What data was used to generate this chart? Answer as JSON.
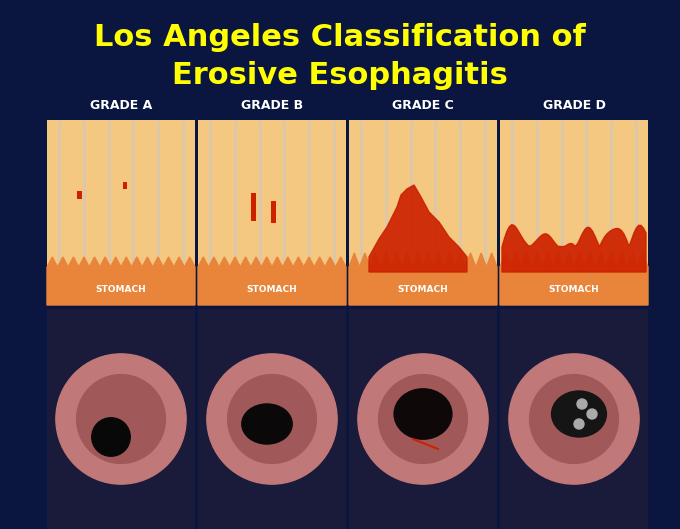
{
  "title_line1": "Los Angeles Classification of",
  "title_line2": "Erosive Esophagitis",
  "title_color": "#FFFF00",
  "title_fontsize": 22,
  "background_color": "#0a1540",
  "grades": [
    "GRADE A",
    "GRADE B",
    "GRADE C",
    "GRADE D"
  ],
  "grade_label_color": "#FFFFFF",
  "grade_label_fontsize": 9,
  "diagram_bg": "#F5C882",
  "stomach_color": "#E8853A",
  "stomach_label": "STOMACH",
  "stomach_label_color": "#FFFFFF",
  "erosion_color": "#CC2200",
  "stripe_color": "#C8C8C8",
  "stripe_alpha": 0.55,
  "photo_bg": "#1a1a3a",
  "figsize": [
    6.8,
    5.29
  ],
  "dpi": 100
}
